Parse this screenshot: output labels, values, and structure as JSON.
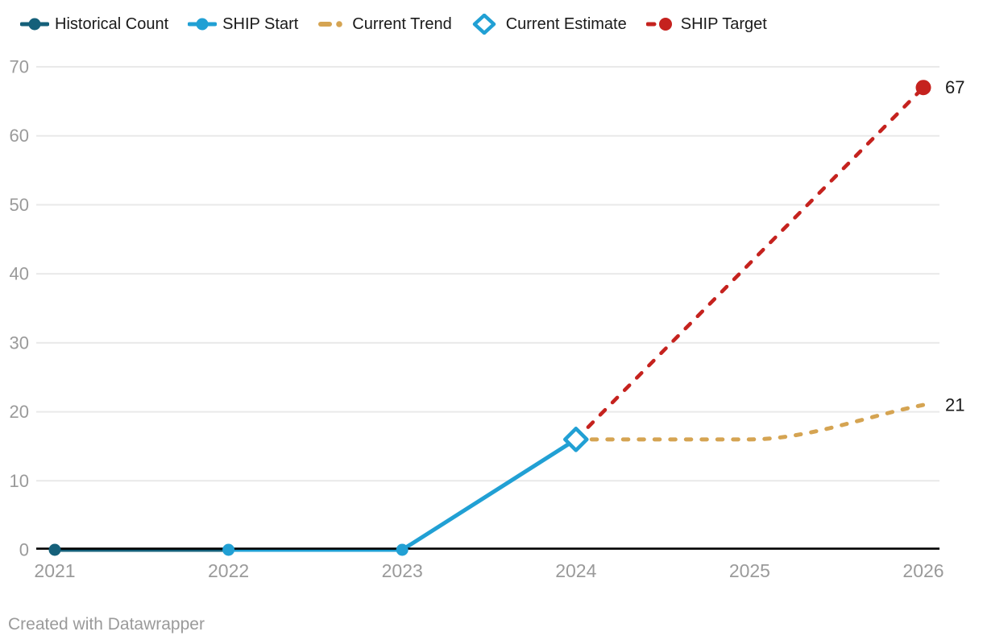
{
  "legend": {
    "items": [
      {
        "label": "Historical Count",
        "marker": "line-dot",
        "color": "#15607a"
      },
      {
        "label": "SHIP Start",
        "marker": "line-dot",
        "color": "#21a0d4"
      },
      {
        "label": "Current Trend",
        "marker": "dash-dot",
        "color": "#d5a452"
      },
      {
        "label": "Current Estimate",
        "marker": "diamond-open",
        "color": "#21a0d4"
      },
      {
        "label": "SHIP Target",
        "marker": "dash-circle",
        "color": "#c5221e"
      }
    ],
    "text_color": "#1a1a1a"
  },
  "chart_data": {
    "type": "line",
    "title": "",
    "xlabel": "",
    "ylabel": "",
    "x_ticks": [
      "2021",
      "2022",
      "2023",
      "2024",
      "2025",
      "2026"
    ],
    "y_ticks": [
      0,
      10,
      20,
      30,
      40,
      50,
      60,
      70
    ],
    "xlim": [
      2021,
      2026
    ],
    "ylim": [
      0,
      70
    ],
    "grid": "horizontal",
    "legend_position": "top",
    "series": [
      {
        "name": "Historical Count",
        "color": "#15607a",
        "line": "solid",
        "x": [
          2021,
          2022
        ],
        "y": [
          0,
          0
        ],
        "point_markers": [
          {
            "x": 2021,
            "y": 0,
            "shape": "circle-filled"
          }
        ]
      },
      {
        "name": "SHIP Start",
        "color": "#21a0d4",
        "line": "solid",
        "x": [
          2022,
          2023,
          2024
        ],
        "y": [
          0,
          0,
          16
        ],
        "point_markers": [
          {
            "x": 2022,
            "y": 0,
            "shape": "circle-filled"
          },
          {
            "x": 2023,
            "y": 0,
            "shape": "circle-filled"
          }
        ]
      },
      {
        "name": "SHIP Target",
        "color": "#c5221e",
        "line": "dashed",
        "x": [
          2024,
          2026
        ],
        "y": [
          16,
          67
        ],
        "point_markers": [
          {
            "x": 2026,
            "y": 67,
            "shape": "circle-filled-large"
          }
        ],
        "end_label": "67"
      },
      {
        "name": "Current Trend",
        "color": "#d5a452",
        "line": "dashed",
        "curve": "monotone",
        "x": [
          2024,
          2025,
          2026
        ],
        "y": [
          16,
          16,
          21
        ],
        "end_label": "21"
      },
      {
        "name": "Current Estimate",
        "color": "#21a0d4",
        "line": "none",
        "x": [
          2024
        ],
        "y": [
          16
        ],
        "point_markers": [
          {
            "x": 2024,
            "y": 16,
            "shape": "diamond-open"
          }
        ]
      }
    ],
    "colors": {
      "grid": "#e9e9e9",
      "axis": "#000000",
      "tick_label": "#9a9a9a",
      "annotation": "#1a1a1a"
    }
  },
  "footer": {
    "attribution": "Created with Datawrapper"
  }
}
